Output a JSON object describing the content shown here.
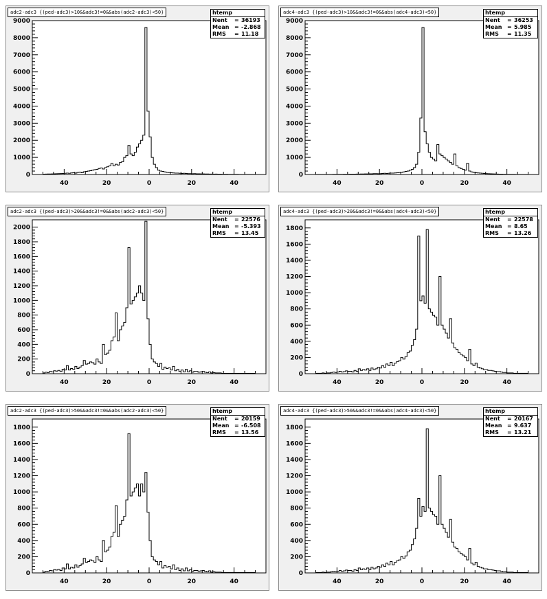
{
  "chart_data": [
    {
      "type": "bar",
      "title": "adc2-adc3 {(ped-adc3)>10&&adc3!=0&&abs(adc2-adc3)<50}",
      "stats": {
        "name": "htemp",
        "entries_label": "Nent",
        "entries": "36193",
        "mean_label": "Mean",
        "mean": "-2.868",
        "rms_label": "RMS",
        "rms": "11.18"
      },
      "xlim": [
        -55,
        55
      ],
      "ylim": [
        0,
        9000
      ],
      "xticks": [
        -40,
        -20,
        0,
        20,
        40
      ],
      "xtick_labels": [
        "40",
        "20",
        "0",
        "20",
        "40"
      ],
      "yticks": [
        0,
        1000,
        2000,
        3000,
        4000,
        5000,
        6000,
        7000,
        8000,
        9000
      ],
      "ytick_labels": [
        "0",
        "1000",
        "2000",
        "3000",
        "4000",
        "5000",
        "6000",
        "7000",
        "8000",
        "9000"
      ],
      "bin_edges_start": -50,
      "bin_width": 1,
      "values": [
        20,
        25,
        30,
        30,
        35,
        40,
        45,
        50,
        55,
        60,
        70,
        80,
        70,
        90,
        100,
        80,
        120,
        140,
        100,
        160,
        180,
        200,
        220,
        250,
        280,
        300,
        350,
        380,
        320,
        400,
        450,
        500,
        650,
        500,
        600,
        550,
        700,
        750,
        1000,
        1100,
        1700,
        1200,
        1100,
        1300,
        1600,
        1800,
        2000,
        2300,
        8600,
        3700,
        2200,
        1000,
        600,
        400,
        250,
        200,
        180,
        150,
        120,
        110,
        100,
        90,
        80,
        80,
        70,
        60,
        70,
        60,
        50,
        50,
        45,
        50,
        40,
        40,
        35,
        35,
        30,
        30,
        25,
        25,
        20,
        25,
        20,
        20,
        15,
        15,
        15,
        10,
        10,
        10,
        10,
        10,
        5,
        5,
        5,
        5,
        5,
        5,
        5,
        5
      ]
    },
    {
      "type": "bar",
      "title": "adc4-adc3 {(ped-adc3)>10&&adc3!=0&&abs(adc4-adc3)<50}",
      "stats": {
        "name": "htemp",
        "entries_label": "Nent",
        "entries": "36253",
        "mean_label": "Mean",
        "mean": "5.985",
        "rms_label": "RMS",
        "rms": "11.35"
      },
      "xlim": [
        -55,
        55
      ],
      "ylim": [
        0,
        9000
      ],
      "xticks": [
        -40,
        -20,
        0,
        20,
        40
      ],
      "xtick_labels": [
        "40",
        "20",
        "0",
        "20",
        "40"
      ],
      "yticks": [
        0,
        1000,
        2000,
        3000,
        4000,
        5000,
        6000,
        7000,
        8000,
        9000
      ],
      "ytick_labels": [
        "0",
        "1000",
        "2000",
        "3000",
        "4000",
        "5000",
        "6000",
        "7000",
        "8000",
        "9000"
      ],
      "bin_edges_start": -50,
      "bin_width": 1,
      "values": [
        5,
        5,
        5,
        5,
        5,
        5,
        5,
        5,
        10,
        10,
        10,
        10,
        10,
        15,
        15,
        15,
        20,
        20,
        20,
        25,
        25,
        30,
        30,
        35,
        35,
        40,
        40,
        50,
        50,
        45,
        50,
        60,
        70,
        60,
        70,
        80,
        80,
        90,
        100,
        110,
        120,
        150,
        180,
        200,
        250,
        300,
        400,
        600,
        1300,
        3300,
        8600,
        2500,
        1800,
        1300,
        1000,
        900,
        800,
        1750,
        1200,
        1100,
        1000,
        900,
        800,
        700,
        600,
        1200,
        500,
        400,
        350,
        300,
        250,
        650,
        200,
        150,
        120,
        100,
        90,
        80,
        70,
        60,
        50,
        45,
        40,
        35,
        30,
        25,
        20,
        20,
        15,
        15,
        10,
        10,
        10,
        10,
        5,
        5,
        5,
        5,
        5,
        5
      ]
    },
    {
      "type": "bar",
      "title": "adc2-adc3 {(ped-adc3)>20&&adc3!=0&&abs(adc2-adc3)<50}",
      "stats": {
        "name": "htemp",
        "entries_label": "Nent",
        "entries": "22576",
        "mean_label": "Mean",
        "mean": "-5.393",
        "rms_label": "RMS",
        "rms": "13.45"
      },
      "xlim": [
        -55,
        55
      ],
      "ylim": [
        0,
        2100
      ],
      "xticks": [
        -40,
        -20,
        0,
        20,
        40
      ],
      "xtick_labels": [
        "40",
        "20",
        "0",
        "20",
        "40"
      ],
      "yticks": [
        0,
        200,
        400,
        600,
        800,
        1000,
        1200,
        1400,
        1600,
        1800,
        2000
      ],
      "ytick_labels": [
        "0",
        "200",
        "400",
        "600",
        "800",
        "1000",
        "1200",
        "1400",
        "1600",
        "1800",
        "2000"
      ],
      "bin_edges_start": -50,
      "bin_width": 1,
      "values": [
        10,
        20,
        15,
        30,
        25,
        40,
        35,
        45,
        30,
        60,
        50,
        110,
        50,
        70,
        60,
        100,
        70,
        90,
        110,
        180,
        130,
        140,
        160,
        150,
        130,
        200,
        160,
        140,
        400,
        260,
        280,
        320,
        450,
        500,
        830,
        450,
        600,
        650,
        700,
        900,
        1720,
        950,
        1000,
        1050,
        1100,
        1200,
        1100,
        1000,
        2080,
        750,
        400,
        200,
        160,
        140,
        100,
        140,
        60,
        90,
        70,
        80,
        50,
        100,
        40,
        60,
        30,
        50,
        25,
        60,
        25,
        40,
        20,
        30,
        30,
        20,
        25,
        30,
        20,
        15,
        25,
        10,
        15,
        10,
        10,
        10,
        5,
        5,
        5,
        5,
        5,
        5,
        5,
        5,
        5,
        5,
        5,
        5,
        5,
        5,
        5,
        5
      ]
    },
    {
      "type": "bar",
      "title": "adc4-adc3 {(ped-adc3)>20&&adc3!=0&&abs(adc4-adc3)<50}",
      "stats": {
        "name": "htemp",
        "entries_label": "Nent",
        "entries": "22578",
        "mean_label": "Mean",
        "mean": " 8.65",
        "rms_label": "RMS",
        "rms": "13.26"
      },
      "xlim": [
        -55,
        55
      ],
      "ylim": [
        0,
        1900
      ],
      "xticks": [
        -40,
        -20,
        0,
        20,
        40
      ],
      "xtick_labels": [
        "40",
        "20",
        "0",
        "20",
        "40"
      ],
      "yticks": [
        0,
        200,
        400,
        600,
        800,
        1000,
        1200,
        1400,
        1600,
        1800
      ],
      "ytick_labels": [
        "0",
        "200",
        "400",
        "600",
        "800",
        "1000",
        "1200",
        "1400",
        "1600",
        "1800"
      ],
      "bin_edges_start": -50,
      "bin_width": 1,
      "values": [
        5,
        5,
        5,
        10,
        5,
        10,
        10,
        15,
        20,
        15,
        20,
        30,
        20,
        25,
        35,
        30,
        30,
        20,
        40,
        30,
        60,
        40,
        50,
        45,
        60,
        40,
        70,
        50,
        60,
        80,
        70,
        100,
        80,
        120,
        100,
        140,
        100,
        130,
        150,
        160,
        200,
        180,
        210,
        260,
        280,
        350,
        420,
        550,
        1700,
        900,
        960,
        870,
        1780,
        800,
        760,
        720,
        700,
        600,
        1200,
        600,
        550,
        500,
        440,
        680,
        380,
        320,
        300,
        260,
        240,
        220,
        200,
        160,
        300,
        120,
        100,
        130,
        80,
        70,
        60,
        50,
        50,
        40,
        40,
        35,
        30,
        25,
        25,
        20,
        15,
        15,
        10,
        10,
        10,
        5,
        5,
        5,
        5,
        5,
        5,
        5
      ]
    },
    {
      "type": "bar",
      "title": "adc2-adc3 {(ped-adc3)>50&&adc3!=0&&abs(adc2-adc3)<50}",
      "stats": {
        "name": "htemp",
        "entries_label": "Nent",
        "entries": "20159",
        "mean_label": "Mean",
        "mean": "-6.508",
        "rms_label": "RMS",
        "rms": "13.56"
      },
      "xlim": [
        -55,
        55
      ],
      "ylim": [
        0,
        1900
      ],
      "xticks": [
        -40,
        -20,
        0,
        20,
        40
      ],
      "xtick_labels": [
        "40",
        "20",
        "0",
        "20",
        "40"
      ],
      "yticks": [
        0,
        200,
        400,
        600,
        800,
        1000,
        1200,
        1400,
        1600,
        1800
      ],
      "ytick_labels": [
        "0",
        "200",
        "400",
        "600",
        "800",
        "1000",
        "1200",
        "1400",
        "1600",
        "1800"
      ],
      "bin_edges_start": -50,
      "bin_width": 1,
      "values": [
        10,
        20,
        15,
        30,
        25,
        40,
        35,
        45,
        30,
        60,
        50,
        110,
        50,
        70,
        60,
        100,
        70,
        90,
        110,
        180,
        130,
        140,
        160,
        150,
        130,
        200,
        160,
        140,
        400,
        260,
        280,
        320,
        450,
        500,
        830,
        450,
        600,
        650,
        700,
        900,
        1720,
        950,
        1000,
        1050,
        1100,
        950,
        1100,
        1000,
        1240,
        750,
        400,
        200,
        160,
        140,
        100,
        140,
        60,
        90,
        70,
        80,
        50,
        100,
        40,
        60,
        30,
        50,
        25,
        60,
        25,
        40,
        20,
        30,
        30,
        20,
        25,
        30,
        20,
        15,
        25,
        10,
        15,
        10,
        10,
        10,
        5,
        5,
        5,
        5,
        5,
        5,
        5,
        5,
        5,
        5,
        5,
        5,
        5,
        5,
        5,
        5
      ]
    },
    {
      "type": "bar",
      "title": "adc4-adc3 {(ped-adc3)>50&&adc3!=0&&abs(adc4-adc3)<50}",
      "stats": {
        "name": "htemp",
        "entries_label": "Nent",
        "entries": "20167",
        "mean_label": "Mean",
        "mean": "9.637",
        "rms_label": "RMS",
        "rms": "13.21"
      },
      "xlim": [
        -55,
        55
      ],
      "ylim": [
        0,
        1900
      ],
      "xticks": [
        -40,
        -20,
        0,
        20,
        40
      ],
      "xtick_labels": [
        "40",
        "20",
        "0",
        "20",
        "40"
      ],
      "yticks": [
        0,
        200,
        400,
        600,
        800,
        1000,
        1200,
        1400,
        1600,
        1800
      ],
      "ytick_labels": [
        "0",
        "200",
        "400",
        "600",
        "800",
        "1000",
        "1200",
        "1400",
        "1600",
        "1800"
      ],
      "bin_edges_start": -50,
      "bin_width": 1,
      "values": [
        5,
        5,
        5,
        10,
        5,
        10,
        10,
        15,
        20,
        15,
        20,
        30,
        20,
        25,
        35,
        30,
        30,
        20,
        40,
        30,
        60,
        40,
        50,
        45,
        60,
        40,
        70,
        50,
        60,
        80,
        70,
        100,
        80,
        120,
        100,
        140,
        100,
        130,
        150,
        160,
        200,
        180,
        210,
        260,
        280,
        350,
        420,
        550,
        920,
        700,
        820,
        760,
        1780,
        800,
        760,
        720,
        700,
        600,
        1200,
        600,
        550,
        500,
        440,
        660,
        380,
        320,
        300,
        260,
        240,
        220,
        200,
        160,
        300,
        120,
        100,
        130,
        80,
        70,
        60,
        50,
        50,
        40,
        40,
        35,
        30,
        25,
        25,
        20,
        15,
        15,
        10,
        10,
        10,
        5,
        5,
        5,
        5,
        5,
        5,
        5
      ]
    }
  ]
}
